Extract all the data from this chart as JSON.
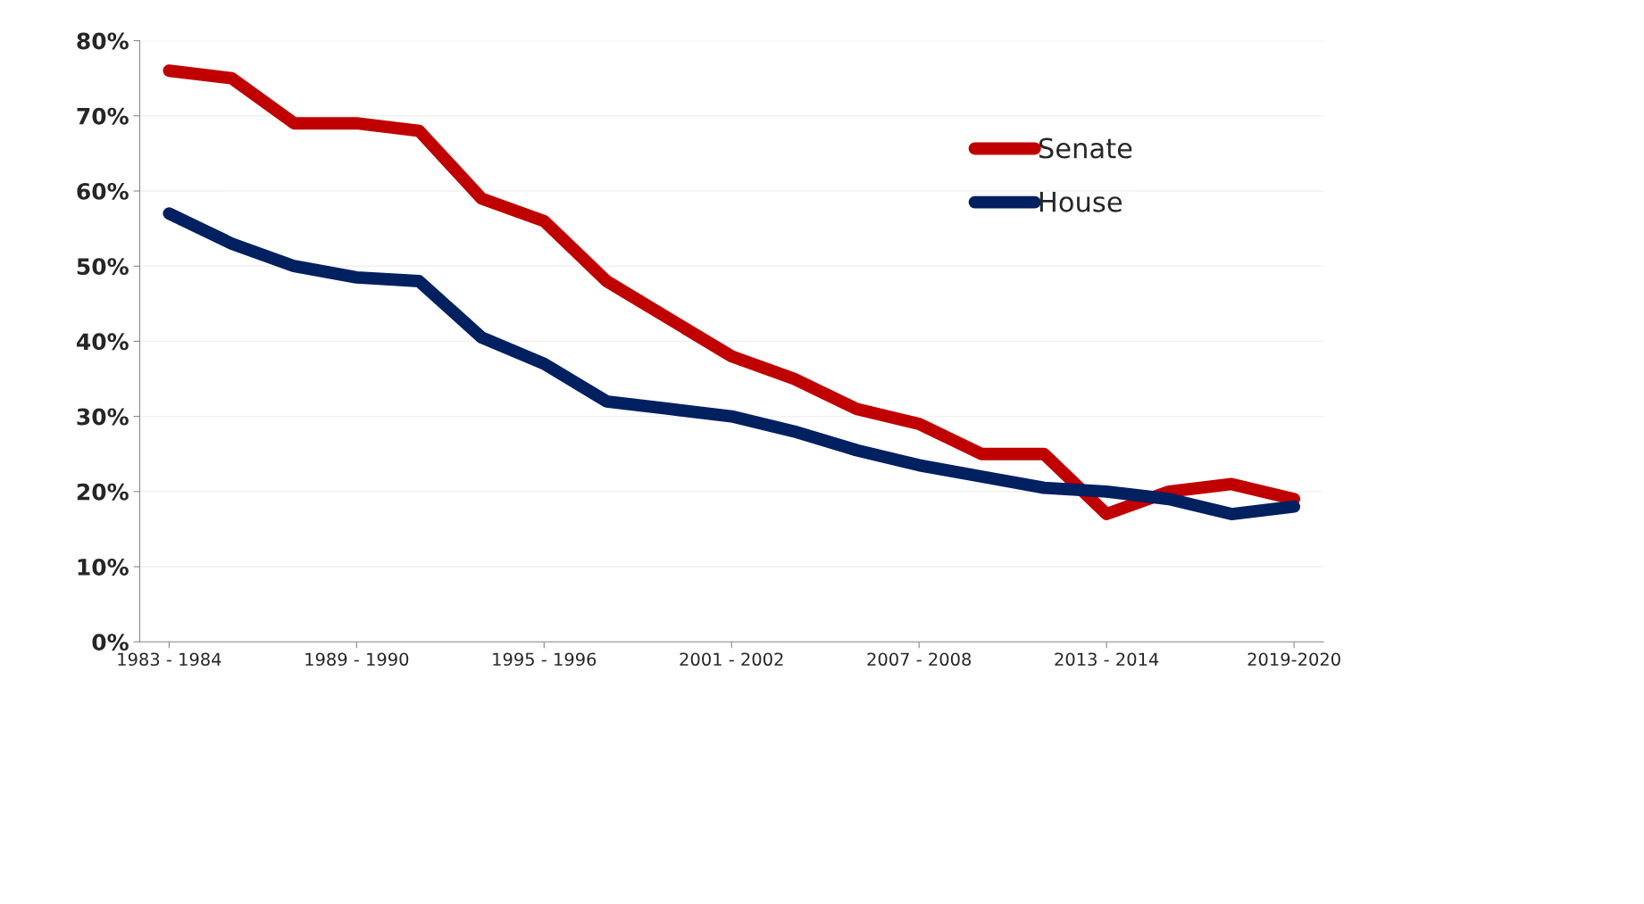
{
  "chart_data": {
    "type": "line",
    "categories": [
      "1983 - 1984",
      null,
      null,
      "1989 - 1990",
      null,
      null,
      "1995 - 1996",
      null,
      null,
      "2001 - 2002",
      null,
      null,
      "2007 - 2008",
      null,
      null,
      "2013 - 2014",
      null,
      null,
      "2019-2020"
    ],
    "series": [
      {
        "name": "Senate",
        "color": "#c00000",
        "values": [
          76,
          75,
          69,
          69,
          68,
          59,
          56,
          48,
          43,
          38,
          35,
          31,
          29,
          25,
          25,
          17,
          20,
          21,
          19
        ]
      },
      {
        "name": "House",
        "color": "#002060",
        "values": [
          57,
          53,
          50,
          48.5,
          48,
          40.5,
          37,
          32,
          31,
          30,
          28,
          25.5,
          23.5,
          22,
          20.5,
          20,
          19,
          17,
          18
        ]
      }
    ],
    "ylim": [
      0,
      80
    ],
    "yticks": [
      {
        "value": 0,
        "label": "0%"
      },
      {
        "value": 10,
        "label": "10%"
      },
      {
        "value": 20,
        "label": "20%"
      },
      {
        "value": 30,
        "label": "30%"
      },
      {
        "value": 40,
        "label": "40%"
      },
      {
        "value": 50,
        "label": "50%"
      },
      {
        "value": 60,
        "label": "60%"
      },
      {
        "value": 70,
        "label": "70%"
      },
      {
        "value": 80,
        "label": "80%"
      }
    ],
    "grid": "y",
    "legend": "top right",
    "marker": "none",
    "line_style": "solid"
  }
}
